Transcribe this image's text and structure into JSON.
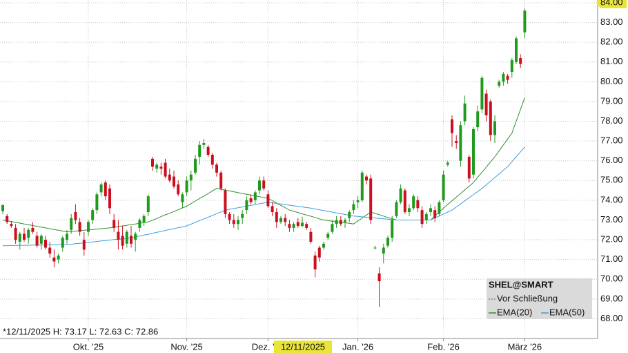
{
  "chart_data": {
    "type": "candlestick",
    "symbol": "SHEL@SMART",
    "reference_line": {
      "name": "Vor Schließung",
      "color": "#555555"
    },
    "annotation": "*12/11/2025 H: 73.17 L: 72.63 C: 72.86",
    "crosshair_label": "12/11/2025",
    "up_color": "#1f9a1f",
    "down_color": "#cc0f1e",
    "grid": true,
    "ylim": [
      67,
      84.14
    ],
    "yticks": [
      {
        "value": 68,
        "label": "68.00"
      },
      {
        "value": 69,
        "label": "69.00"
      },
      {
        "value": 70,
        "label": "70.00"
      },
      {
        "value": 71,
        "label": "71.00"
      },
      {
        "value": 72,
        "label": "72.00"
      },
      {
        "value": 73,
        "label": "73.00"
      },
      {
        "value": 74,
        "label": "74.00"
      },
      {
        "value": 75,
        "label": "75.00"
      },
      {
        "value": 76,
        "label": "76.00"
      },
      {
        "value": 77,
        "label": "77.00"
      },
      {
        "value": 78,
        "label": "78.00"
      },
      {
        "value": 79,
        "label": "79.00"
      },
      {
        "value": 80,
        "label": "80.00"
      },
      {
        "value": 81,
        "label": "81.00"
      },
      {
        "value": 82,
        "label": "82.00"
      },
      {
        "value": 83,
        "label": "83.00"
      },
      {
        "value": 84,
        "label": "84.00"
      }
    ],
    "categories": [
      null,
      null,
      null,
      null,
      null,
      null,
      null,
      null,
      null,
      null,
      null,
      null,
      null,
      null,
      null,
      null,
      null,
      null,
      null,
      null,
      "Okt. '25",
      null,
      null,
      null,
      null,
      null,
      null,
      null,
      null,
      null,
      null,
      null,
      null,
      null,
      null,
      null,
      null,
      null,
      null,
      null,
      null,
      null,
      null,
      "Nov. '25",
      null,
      null,
      null,
      null,
      null,
      null,
      null,
      null,
      null,
      null,
      null,
      null,
      null,
      null,
      null,
      null,
      null,
      null,
      "Dez. '25",
      null,
      null,
      null,
      null,
      null,
      null,
      null,
      null,
      null,
      null,
      null,
      null,
      null,
      null,
      null,
      null,
      null,
      null,
      null,
      null,
      "Jan. '26",
      null,
      null,
      null,
      null,
      null,
      null,
      null,
      null,
      null,
      null,
      null,
      null,
      null,
      null,
      null,
      null,
      null,
      null,
      null,
      "Feb. '26",
      null,
      null,
      null,
      null,
      null,
      null,
      null,
      null,
      null,
      null,
      null,
      null,
      null,
      null,
      null,
      null,
      null,
      null,
      "März '26"
    ],
    "open": [
      73.45,
      73.2,
      72.8,
      72.6,
      71.9,
      72.3,
      72.1,
      72.6,
      72.2,
      71.8,
      72.0,
      71.6,
      71.1,
      71.0,
      71.6,
      72.0,
      72.5,
      73.4,
      72.9,
      72.0,
      72.4,
      73.0,
      73.5,
      74.4,
      74.9,
      74.6,
      73.0,
      72.4,
      72.2,
      71.8,
      72.2,
      72.0,
      72.6,
      72.9,
      73.4,
      76.1,
      75.6,
      75.7,
      75.9,
      75.3,
      75.2,
      74.8,
      73.9,
      74.4,
      75.0,
      75.4,
      76.2,
      76.8,
      76.7,
      76.3,
      75.8,
      75.4,
      74.5,
      73.3,
      73.0,
      72.8,
      73.1,
      73.5,
      74.1,
      74.0,
      74.5,
      75.0,
      74.3,
      73.7,
      73.4,
      72.9,
      73.1,
      72.8,
      72.6,
      72.9,
      72.7,
      72.8,
      72.4,
      71.2,
      71.6,
      71.6,
      72.1,
      72.4,
      72.8,
      73.0,
      72.9,
      73.1,
      73.5,
      73.9,
      74.0,
      75.2,
      75.1,
      71.6,
      70.3,
      71.3,
      71.7,
      72.1,
      73.2,
      73.9,
      74.5,
      73.4,
      73.6,
      74.0,
      73.5,
      73.0,
      73.4,
      73.5,
      73.3,
      74.0,
      75.8,
      78.1,
      77.0,
      76.0,
      78.0,
      76.2,
      75.3,
      77.7,
      78.6,
      79.4,
      79.0,
      77.3,
      79.8,
      80.0,
      80.3,
      80.5,
      81.0,
      81.2,
      82.5
    ],
    "high": [
      73.8,
      73.3,
      72.95,
      72.8,
      72.4,
      72.6,
      72.6,
      72.9,
      72.4,
      72.3,
      72.2,
      71.9,
      71.5,
      71.3,
      72.2,
      72.5,
      73.3,
      73.8,
      73.1,
      72.4,
      73.0,
      73.6,
      74.4,
      74.9,
      75.0,
      74.8,
      73.3,
      73.0,
      72.7,
      72.5,
      72.7,
      72.4,
      73.1,
      73.3,
      74.3,
      76.2,
      75.9,
      75.9,
      76.1,
      75.6,
      75.5,
      75.0,
      74.4,
      75.2,
      75.5,
      76.3,
      77.0,
      77.1,
      76.8,
      76.4,
      75.9,
      75.5,
      74.6,
      73.4,
      73.3,
      73.2,
      73.5,
      74.2,
      74.3,
      74.5,
      75.2,
      75.2,
      74.5,
      73.9,
      73.6,
      73.2,
      73.3,
      73.0,
      72.9,
      73.1,
      73.17,
      72.9,
      72.6,
      71.4,
      71.7,
      71.9,
      72.4,
      73.0,
      73.2,
      73.2,
      73.1,
      73.5,
      74.0,
      74.2,
      75.5,
      75.3,
      75.3,
      71.7,
      70.6,
      71.8,
      72.2,
      73.2,
      74.0,
      74.8,
      74.6,
      73.8,
      74.3,
      74.2,
      73.7,
      73.4,
      73.8,
      73.7,
      74.0,
      75.5,
      76.0,
      78.3,
      77.3,
      78.0,
      79.3,
      76.3,
      77.7,
      78.8,
      80.3,
      79.6,
      79.1,
      78.3,
      80.1,
      80.5,
      80.4,
      81.2,
      82.3,
      81.4,
      83.7
    ],
    "low": [
      73.3,
      72.8,
      72.6,
      71.8,
      71.5,
      71.9,
      71.8,
      72.3,
      71.6,
      71.5,
      71.5,
      71.1,
      70.6,
      70.8,
      71.4,
      71.8,
      72.3,
      72.8,
      72.2,
      71.2,
      72.2,
      72.8,
      73.3,
      74.2,
      74.0,
      73.3,
      72.4,
      71.5,
      71.5,
      71.6,
      71.6,
      71.4,
      72.4,
      72.7,
      73.2,
      75.5,
      75.4,
      75.3,
      75.1,
      74.9,
      74.6,
      74.2,
      73.6,
      74.2,
      74.5,
      75.3,
      75.8,
      76.6,
      76.2,
      75.6,
      75.2,
      74.5,
      73.1,
      72.8,
      72.6,
      72.5,
      72.8,
      73.3,
      73.8,
      73.8,
      74.3,
      74.5,
      73.6,
      73.2,
      72.6,
      72.8,
      72.7,
      72.4,
      72.4,
      72.6,
      72.63,
      72.5,
      71.8,
      70.1,
      70.9,
      71.5,
      72.0,
      72.3,
      72.6,
      72.7,
      72.6,
      72.9,
      73.3,
      73.6,
      73.9,
      74.8,
      72.8,
      71.5,
      68.6,
      70.8,
      71.6,
      71.9,
      73.1,
      73.8,
      73.3,
      73.2,
      73.5,
      73.4,
      72.6,
      72.8,
      73.2,
      72.9,
      73.2,
      73.9,
      75.7,
      76.7,
      76.6,
      75.7,
      77.8,
      74.9,
      75.1,
      77.5,
      78.4,
      78.0,
      77.0,
      76.9,
      79.7,
      79.8,
      79.9,
      80.2,
      80.9,
      80.7,
      82.2
    ],
    "close": [
      73.75,
      72.9,
      72.7,
      72.0,
      72.3,
      72.0,
      72.5,
      72.4,
      71.7,
      72.2,
      71.6,
      71.3,
      70.9,
      71.2,
      72.1,
      72.3,
      73.1,
      73.0,
      72.4,
      71.5,
      72.9,
      73.5,
      74.3,
      74.8,
      74.2,
      73.6,
      72.6,
      72.0,
      71.7,
      72.4,
      71.8,
      72.3,
      73.0,
      73.2,
      74.2,
      75.7,
      75.8,
      75.6,
      75.2,
      75.0,
      74.7,
      74.3,
      74.3,
      75.0,
      75.3,
      76.1,
      76.8,
      76.9,
      76.3,
      75.8,
      75.4,
      74.6,
      73.3,
      73.0,
      72.8,
      73.0,
      73.3,
      74.0,
      73.9,
      74.4,
      75.0,
      74.6,
      73.7,
      73.4,
      72.9,
      73.1,
      72.9,
      72.6,
      72.8,
      72.7,
      72.86,
      72.6,
      71.9,
      70.5,
      71.1,
      71.8,
      72.3,
      72.8,
      73.0,
      72.8,
      73.0,
      73.4,
      73.8,
      74.0,
      75.4,
      75.0,
      73.0,
      71.6,
      69.9,
      71.6,
      72.1,
      73.0,
      73.9,
      74.6,
      73.4,
      73.6,
      74.2,
      73.6,
      72.8,
      73.3,
      73.6,
      73.1,
      73.9,
      75.3,
      75.9,
      77.4,
      76.9,
      77.8,
      78.9,
      75.1,
      77.6,
      78.5,
      80.2,
      78.3,
      77.3,
      78.0,
      80.0,
      80.4,
      80.1,
      81.1,
      82.2,
      80.9,
      83.6
    ],
    "overlays": [
      {
        "name": "EMA(20)",
        "color": "#2f8f2f",
        "values": [
          73.0,
          72.96,
          72.92,
          72.88,
          72.84,
          72.8,
          72.76,
          72.72,
          72.68,
          72.64,
          72.6,
          72.56,
          72.52,
          72.48,
          72.44,
          72.4,
          72.42,
          72.44,
          72.46,
          72.48,
          72.5,
          72.52,
          72.54,
          72.56,
          72.58,
          72.6,
          72.63,
          72.67,
          72.7,
          72.73,
          72.77,
          72.8,
          72.83,
          72.87,
          72.9,
          72.99,
          73.08,
          73.17,
          73.26,
          73.34,
          73.43,
          73.52,
          73.61,
          73.7,
          73.83,
          73.96,
          74.09,
          74.21,
          74.34,
          74.47,
          74.6,
          74.56,
          74.51,
          74.47,
          74.43,
          74.39,
          74.34,
          74.3,
          74.26,
          74.22,
          74.18,
          74.14,
          74.1,
          73.98,
          73.86,
          73.74,
          73.62,
          73.5,
          73.44,
          73.38,
          73.31,
          73.25,
          73.19,
          73.13,
          73.06,
          73.0,
          72.97,
          72.94,
          72.91,
          72.89,
          72.86,
          72.83,
          72.8,
          72.95,
          73.1,
          73.25,
          73.4,
          73.33,
          73.27,
          73.2,
          73.13,
          73.07,
          73.0,
          73.0,
          73.0,
          73.0,
          73.0,
          73.0,
          73.0,
          73.0,
          73.0,
          73.2,
          73.4,
          73.6,
          73.79,
          73.97,
          74.16,
          74.34,
          74.53,
          74.71,
          74.9,
          75.16,
          75.42,
          75.68,
          75.94,
          76.2,
          76.5,
          76.8,
          77.1,
          77.4,
          78.0,
          78.6,
          79.2
        ]
      },
      {
        "name": "EMA(50)",
        "color": "#3b9fe0",
        "values": [
          71.7,
          71.7,
          71.71,
          71.71,
          71.72,
          71.72,
          71.72,
          71.73,
          71.73,
          71.73,
          71.74,
          71.74,
          71.74,
          71.75,
          71.75,
          71.75,
          71.77,
          71.8,
          71.82,
          71.84,
          71.87,
          71.89,
          71.91,
          71.94,
          71.96,
          71.98,
          72.01,
          72.03,
          72.05,
          72.08,
          72.1,
          72.15,
          72.19,
          72.24,
          72.28,
          72.33,
          72.38,
          72.42,
          72.47,
          72.52,
          72.56,
          72.61,
          72.65,
          72.7,
          72.79,
          72.88,
          72.97,
          73.06,
          73.14,
          73.23,
          73.32,
          73.41,
          73.5,
          73.54,
          73.58,
          73.62,
          73.66,
          73.7,
          73.74,
          73.78,
          73.82,
          73.86,
          73.9,
          73.87,
          73.84,
          73.81,
          73.78,
          73.75,
          73.72,
          73.69,
          73.66,
          73.63,
          73.6,
          73.56,
          73.52,
          73.48,
          73.44,
          73.4,
          73.36,
          73.32,
          73.28,
          73.24,
          73.2,
          73.18,
          73.16,
          73.14,
          73.12,
          73.1,
          73.08,
          73.06,
          73.04,
          73.02,
          73.0,
          73.0,
          73.0,
          73.0,
          73.0,
          73.0,
          73.0,
          73.0,
          73.0,
          73.1,
          73.2,
          73.3,
          73.4,
          73.5,
          73.66,
          73.81,
          73.97,
          74.13,
          74.29,
          74.44,
          74.6,
          74.78,
          74.97,
          75.15,
          75.33,
          75.52,
          75.7,
          75.95,
          76.2,
          76.45,
          76.7
        ]
      }
    ]
  }
}
